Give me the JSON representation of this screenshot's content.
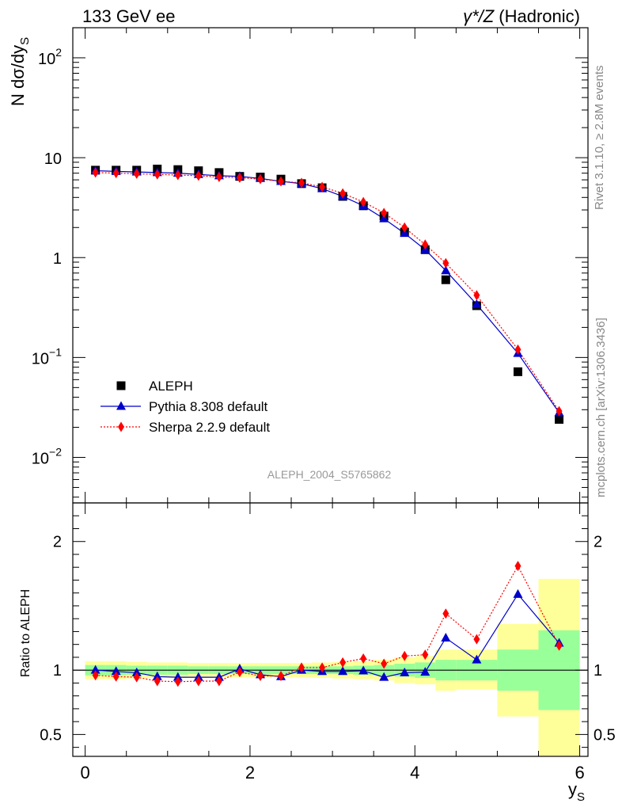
{
  "header": {
    "left": "133 GeV ee",
    "right_sym": "γ*/Z",
    "right_text": " (Hadronic)"
  },
  "side_labels": {
    "rivet": "Rivet 3.1.10, ≥ 2.8M events",
    "mcplots": "mcplots.cern.ch [arXiv:1306.3436]"
  },
  "analysis_id": "ALEPH_2004_S5765862",
  "chart_data": [
    {
      "type": "scatter",
      "panel": "main",
      "ylabel": "N dσ/dy_S",
      "xlim": [
        -0.15,
        6.1
      ],
      "ylim": [
        0.0035,
        200
      ],
      "log_y": true,
      "x_ticks": [
        0,
        2,
        4,
        6
      ],
      "y_ticks": [
        {
          "value": 0.01,
          "base": "10",
          "exp": "−2"
        },
        {
          "value": 0.1,
          "base": "10",
          "exp": "−1"
        },
        {
          "value": 1,
          "base": "1",
          "exp": ""
        },
        {
          "value": 10,
          "base": "10",
          "exp": ""
        },
        {
          "value": 100,
          "base": "10",
          "exp": "2"
        }
      ],
      "legend_position": "lower-left",
      "x": [
        0.125,
        0.375,
        0.625,
        0.875,
        1.125,
        1.375,
        1.625,
        1.875,
        2.125,
        2.375,
        2.625,
        2.875,
        3.125,
        3.375,
        3.625,
        3.875,
        4.125,
        4.375,
        4.75,
        5.25,
        5.75
      ],
      "series": [
        {
          "name": "ALEPH",
          "color": "#000000",
          "marker": "square",
          "values": [
            7.5,
            7.5,
            7.5,
            7.7,
            7.6,
            7.4,
            7.1,
            6.5,
            6.4,
            6.1,
            5.5,
            5.0,
            4.1,
            3.3,
            2.6,
            1.8,
            1.2,
            0.6,
            0.33,
            0.072,
            0.024
          ]
        },
        {
          "name": "Pythia 8.308 default",
          "color": "#0000cc",
          "marker": "triangle",
          "line": "solid",
          "values": [
            7.4,
            7.3,
            7.2,
            7.1,
            7.0,
            6.8,
            6.6,
            6.5,
            6.2,
            5.8,
            5.5,
            4.9,
            4.1,
            3.3,
            2.45,
            1.75,
            1.2,
            0.74,
            0.34,
            0.11,
            0.028
          ]
        },
        {
          "name": "Sherpa 2.2.9 default",
          "color": "#ff0000",
          "marker": "diamond",
          "line": "dotted",
          "values": [
            7.1,
            7.0,
            6.9,
            6.8,
            6.7,
            6.6,
            6.4,
            6.3,
            6.1,
            5.8,
            5.6,
            5.1,
            4.4,
            3.6,
            2.8,
            2.0,
            1.35,
            0.88,
            0.42,
            0.12,
            0.029
          ]
        }
      ]
    },
    {
      "type": "scatter",
      "panel": "ratio",
      "ylabel": "Ratio to ALEPH",
      "xlabel_main": "y",
      "xlabel_sub": "S",
      "xlim": [
        -0.15,
        6.1
      ],
      "ylim": [
        0.33,
        2.3
      ],
      "reference_line": 1,
      "x_ticks": [
        0,
        2,
        4,
        6
      ],
      "y_ticks": [
        0.5,
        1,
        2
      ],
      "y_tick_labels": [
        "0.5",
        "1",
        "2"
      ],
      "bins": [
        {
          "lo": 0.0,
          "hi": 0.25,
          "stat": [
            0.96,
            1.04
          ],
          "total": [
            0.93,
            1.07
          ]
        },
        {
          "lo": 0.25,
          "hi": 0.5,
          "stat": [
            0.96,
            1.04
          ],
          "total": [
            0.93,
            1.07
          ]
        },
        {
          "lo": 0.5,
          "hi": 0.75,
          "stat": [
            0.965,
            1.035
          ],
          "total": [
            0.935,
            1.065
          ]
        },
        {
          "lo": 0.75,
          "hi": 1.0,
          "stat": [
            0.965,
            1.035
          ],
          "total": [
            0.94,
            1.06
          ]
        },
        {
          "lo": 1.0,
          "hi": 1.25,
          "stat": [
            0.965,
            1.035
          ],
          "total": [
            0.94,
            1.06
          ]
        },
        {
          "lo": 1.25,
          "hi": 1.5,
          "stat": [
            0.97,
            1.03
          ],
          "total": [
            0.945,
            1.055
          ]
        },
        {
          "lo": 1.5,
          "hi": 1.75,
          "stat": [
            0.97,
            1.03
          ],
          "total": [
            0.945,
            1.055
          ]
        },
        {
          "lo": 1.75,
          "hi": 2.0,
          "stat": [
            0.97,
            1.03
          ],
          "total": [
            0.945,
            1.055
          ]
        },
        {
          "lo": 2.0,
          "hi": 2.25,
          "stat": [
            0.97,
            1.03
          ],
          "total": [
            0.945,
            1.055
          ]
        },
        {
          "lo": 2.25,
          "hi": 2.5,
          "stat": [
            0.97,
            1.03
          ],
          "total": [
            0.945,
            1.055
          ]
        },
        {
          "lo": 2.5,
          "hi": 2.75,
          "stat": [
            0.97,
            1.03
          ],
          "total": [
            0.945,
            1.055
          ]
        },
        {
          "lo": 2.75,
          "hi": 3.0,
          "stat": [
            0.97,
            1.03
          ],
          "total": [
            0.94,
            1.06
          ]
        },
        {
          "lo": 3.0,
          "hi": 3.25,
          "stat": [
            0.97,
            1.03
          ],
          "total": [
            0.935,
            1.065
          ]
        },
        {
          "lo": 3.25,
          "hi": 3.5,
          "stat": [
            0.965,
            1.035
          ],
          "total": [
            0.93,
            1.07
          ]
        },
        {
          "lo": 3.5,
          "hi": 3.75,
          "stat": [
            0.96,
            1.04
          ],
          "total": [
            0.92,
            1.08
          ]
        },
        {
          "lo": 3.75,
          "hi": 4.0,
          "stat": [
            0.95,
            1.05
          ],
          "total": [
            0.9,
            1.1
          ]
        },
        {
          "lo": 4.0,
          "hi": 4.25,
          "stat": [
            0.94,
            1.06
          ],
          "total": [
            0.89,
            1.11
          ]
        },
        {
          "lo": 4.25,
          "hi": 4.5,
          "stat": [
            0.92,
            1.08
          ],
          "total": [
            0.84,
            1.16
          ]
        },
        {
          "lo": 4.5,
          "hi": 5.0,
          "stat": [
            0.92,
            1.08
          ],
          "total": [
            0.85,
            1.16
          ]
        },
        {
          "lo": 5.0,
          "hi": 5.5,
          "stat": [
            0.84,
            1.16
          ],
          "total": [
            0.64,
            1.36
          ]
        },
        {
          "lo": 5.5,
          "hi": 6.0,
          "stat": [
            0.69,
            1.31
          ],
          "total": [
            0.33,
            1.71
          ]
        }
      ],
      "x": [
        0.125,
        0.375,
        0.625,
        0.875,
        1.125,
        1.375,
        1.625,
        1.875,
        2.125,
        2.375,
        2.625,
        2.875,
        3.125,
        3.375,
        3.625,
        3.875,
        4.125,
        4.375,
        4.75,
        5.25,
        5.75
      ],
      "series": [
        {
          "name": "Pythia 8.308 default",
          "color": "#0000cc",
          "marker": "triangle",
          "line": "solid",
          "values": [
            1.0,
            0.99,
            0.98,
            0.95,
            0.945,
            0.945,
            0.945,
            1.01,
            0.965,
            0.95,
            1.0,
            0.99,
            0.99,
            0.995,
            0.945,
            0.98,
            0.985,
            1.25,
            1.08,
            1.59,
            1.21
          ]
        },
        {
          "name": "Sherpa 2.2.9 default",
          "color": "#ff0000",
          "marker": "diamond",
          "line": "dotted",
          "values": [
            0.96,
            0.95,
            0.945,
            0.915,
            0.91,
            0.915,
            0.915,
            0.985,
            0.955,
            0.955,
            1.02,
            1.02,
            1.06,
            1.09,
            1.05,
            1.11,
            1.12,
            1.44,
            1.24,
            1.81,
            1.19
          ]
        }
      ]
    }
  ]
}
